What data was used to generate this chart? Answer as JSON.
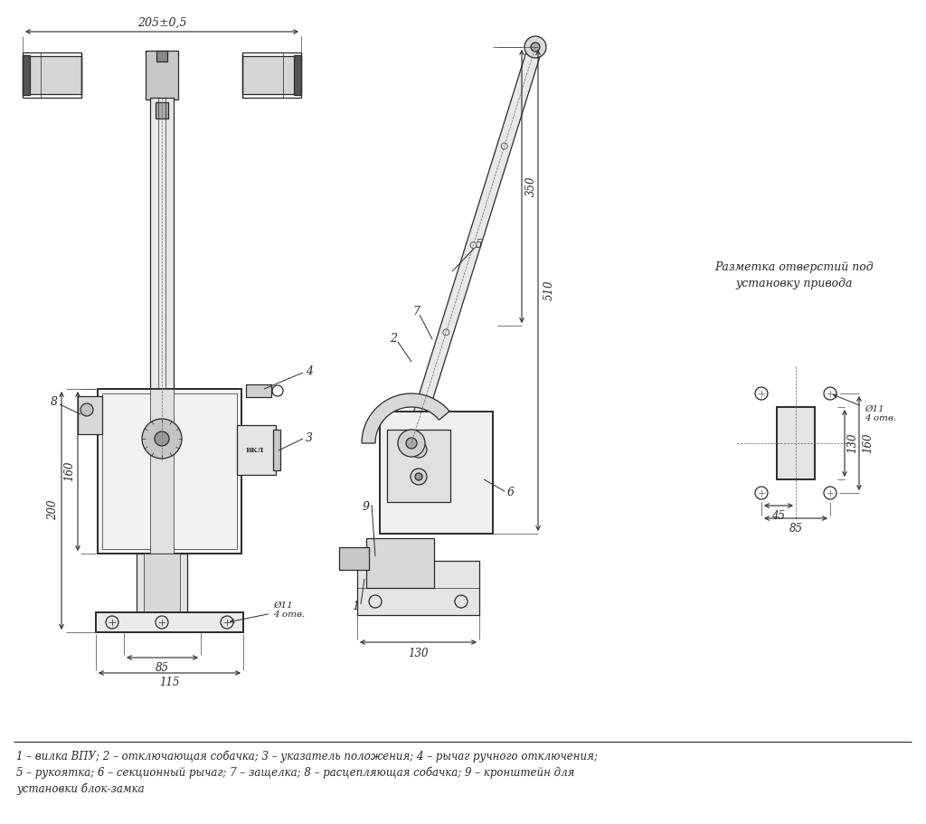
{
  "bg_color": "#ffffff",
  "lc": "#2a2a2a",
  "figsize": [
    10.24,
    9.11
  ],
  "dpi": 100,
  "legend_line1": "1 – вилка ВПУ; 2 – отключающая собачка; 3 – указатель положения; 4 – рычаг ручного отключения;",
  "legend_line2": "5 – рукоятка; 6 – секционный рычаг; 7 – защелка; 8 – расцепляющая собачка; 9 – кронштейн для",
  "legend_line3": "установки блок-замка",
  "holes_title1": "Разметка отверстий под",
  "holes_title2": "установку привода"
}
